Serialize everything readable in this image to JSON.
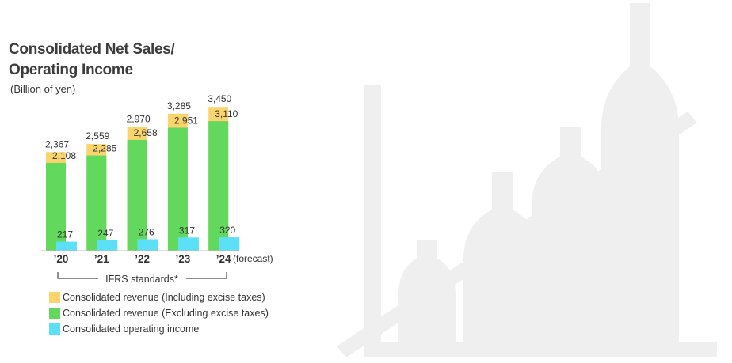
{
  "title_line1": "Consolidated Net Sales/",
  "title_line2": "Operating Income",
  "unit": "(Billion of yen)",
  "forecast_note": "(forecast)",
  "standards_label": "IFRS standards*",
  "colors": {
    "incl_excise": "#fbd46c",
    "excl_excise": "#62d95c",
    "operating_income": "#5ce0f8",
    "background_art": "#efefef"
  },
  "legend": [
    {
      "label": "Consolidated revenue (Including excise taxes)",
      "color_key": "incl_excise"
    },
    {
      "label": "Consolidated revenue (Excluding excise taxes)",
      "color_key": "excl_excise"
    },
    {
      "label": "Consolidated operating income",
      "color_key": "operating_income"
    }
  ],
  "chart_data": {
    "type": "bar",
    "categories": [
      "’20",
      "’21",
      "’22",
      "’23",
      "’24"
    ],
    "series": [
      {
        "name": "Consolidated revenue (Including excise taxes)",
        "values": [
          2367,
          2559,
          2970,
          3285,
          3450
        ],
        "labels": [
          "2,367",
          "2,559",
          "2,970",
          "3,285",
          "3,450"
        ]
      },
      {
        "name": "Consolidated revenue (Excluding excise taxes)",
        "values": [
          2108,
          2285,
          2658,
          2951,
          3110
        ],
        "labels": [
          "2,108",
          "2,285",
          "2,658",
          "2,951",
          "3,110"
        ]
      },
      {
        "name": "Consolidated operating income",
        "values": [
          217,
          247,
          276,
          317,
          320
        ],
        "labels": [
          "217",
          "247",
          "276",
          "317",
          "320"
        ]
      }
    ],
    "forecast_category": "’24",
    "grid": false,
    "legend_position": "bottom"
  }
}
